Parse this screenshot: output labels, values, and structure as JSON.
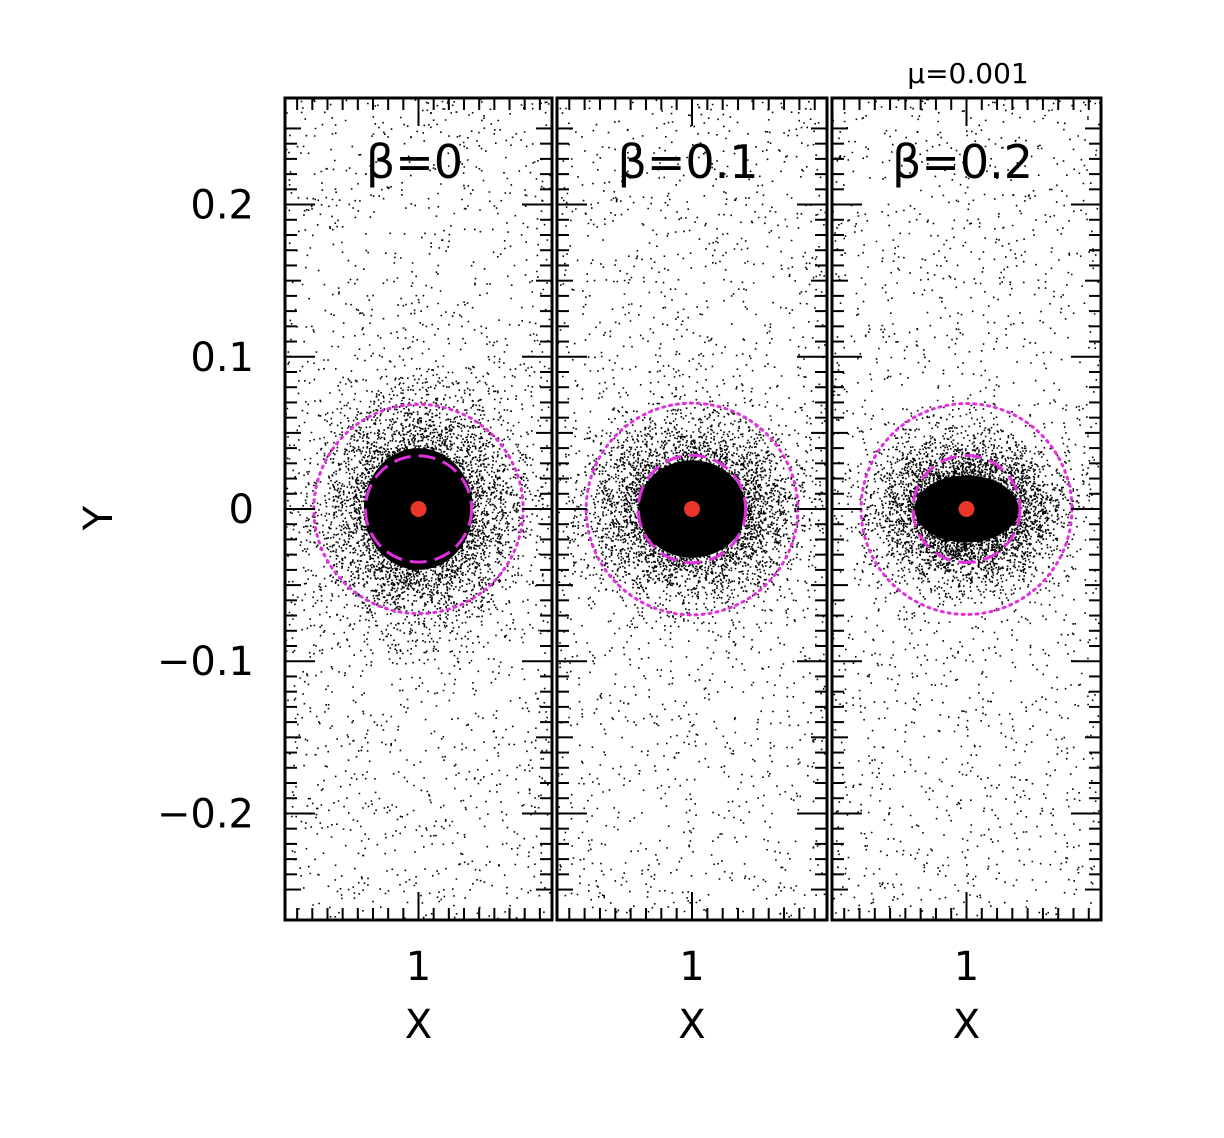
{
  "chart_data": {
    "type": "scatter",
    "figure_label": "μ=0.001",
    "ylabel": "Y",
    "xlabel": "X",
    "shared_y_axis": true,
    "ylim": [
      -0.27,
      0.27
    ],
    "y_ticks": [
      {
        "value": 0.2,
        "label": "0.2"
      },
      {
        "value": 0.1,
        "label": "0.1"
      },
      {
        "value": 0,
        "label": "0"
      },
      {
        "value": -0.1,
        "label": "−0.1"
      },
      {
        "value": -0.2,
        "label": "−0.2"
      }
    ],
    "panels": [
      {
        "label": "β=0",
        "xlim": [
          0.912,
          1.088
        ],
        "x_tick": {
          "value": 1,
          "label": "1"
        },
        "planet": {
          "x": 1,
          "y": 0,
          "color": "#e8372a"
        },
        "core": {
          "x_half_width": 0.036,
          "y_half_width": 0.04
        },
        "dense_halo": {
          "x_half_width": 0.05,
          "y_half_width": 0.058
        },
        "dashed_circle_radius": 0.035,
        "dotted_circle_radius": 0.069
      },
      {
        "label": "β=0.1",
        "xlim": [
          0.912,
          1.088
        ],
        "x_tick": {
          "value": 1,
          "label": "1"
        },
        "planet": {
          "x": 1,
          "y": 0,
          "color": "#e8372a"
        },
        "core": {
          "x_half_width": 0.035,
          "y_half_width": 0.032
        },
        "dense_halo": {
          "x_half_width": 0.052,
          "y_half_width": 0.044
        },
        "dashed_circle_radius": 0.035,
        "dotted_circle_radius": 0.069
      },
      {
        "label": "β=0.2",
        "xlim": [
          0.912,
          1.088
        ],
        "x_tick": {
          "value": 1,
          "label": "1"
        },
        "planet": {
          "x": 1,
          "y": 0,
          "color": "#e8372a"
        },
        "core": {
          "x_half_width": 0.034,
          "y_half_width": 0.022
        },
        "dense_halo": {
          "x_half_width": 0.045,
          "y_half_width": 0.036
        },
        "dashed_circle_radius": 0.035,
        "dotted_circle_radius": 0.069
      }
    ],
    "grid": false,
    "colors": {
      "particles": "#000000",
      "planet": "#e8372a",
      "circles": "#e030e0"
    }
  }
}
